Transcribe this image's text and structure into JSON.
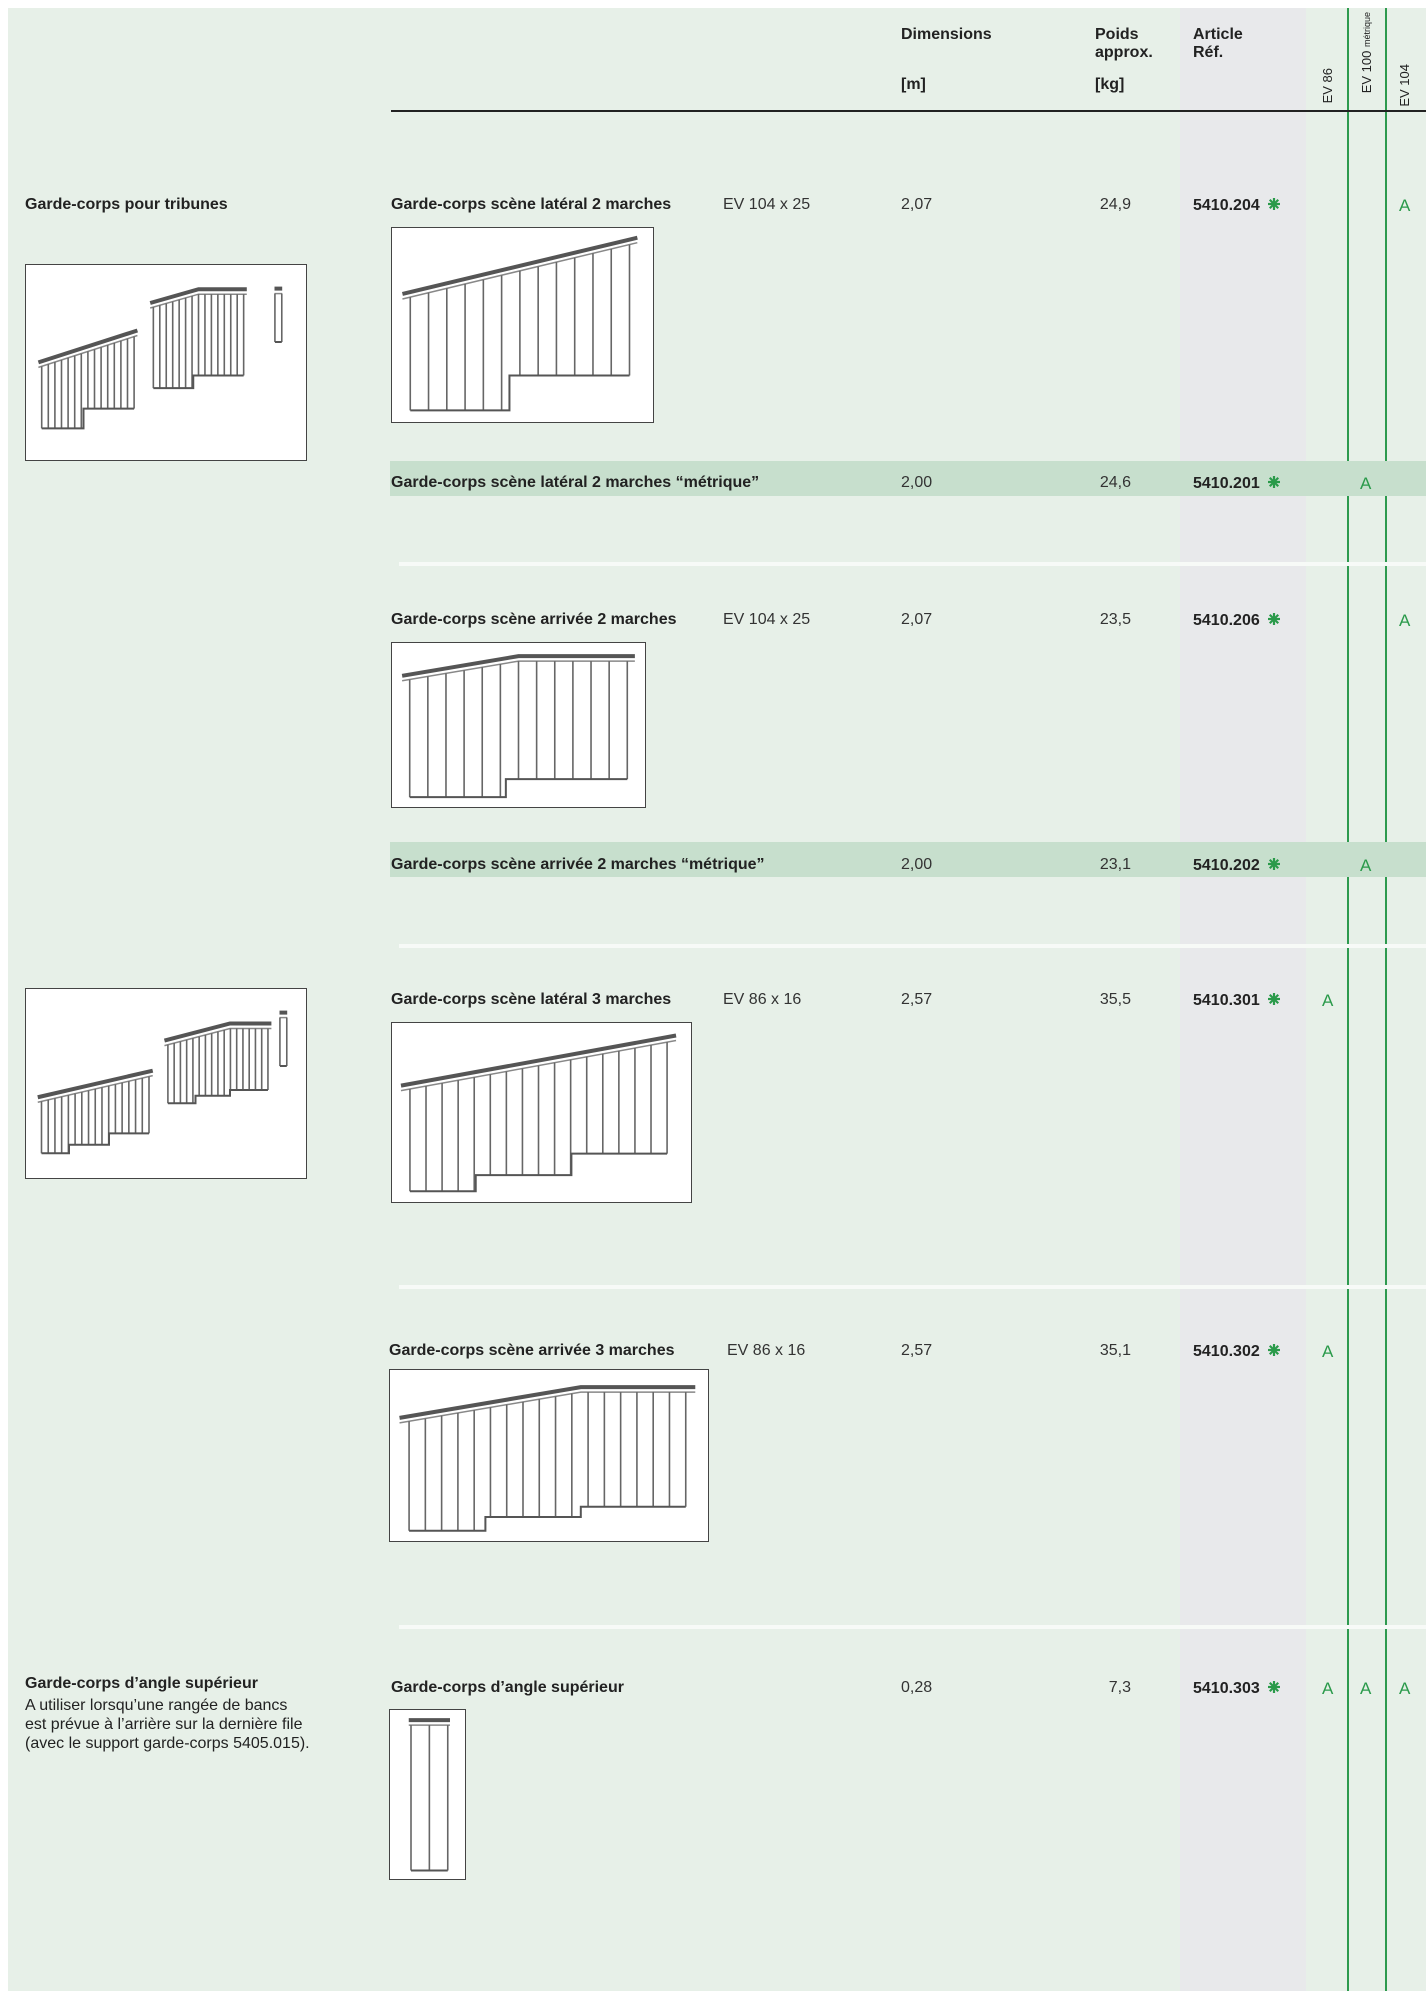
{
  "header": {
    "dimensions": "Dimensions",
    "dimensions_unit": "[m]",
    "weight": "Poids approx.",
    "weight_unit": "[kg]",
    "article": "Article Réf.",
    "ev86": "EV 86",
    "ev100": "EV 100",
    "ev100_note": "métrique",
    "ev104": "EV 104"
  },
  "groups": [
    {
      "title": "Garde-corps pour tribunes"
    },
    {
      "title": "Garde-corps d’angle supérieur",
      "description": [
        "A utiliser lorsqu’une rangée de bancs",
        "est prévue à l’arrière sur la dernière file",
        "(avec le support garde-corps 5405.015)."
      ]
    }
  ],
  "rows": [
    {
      "name": "Garde-corps scène latéral 2 marches",
      "spec": "EV 104 x 25",
      "dimension": "2,07",
      "weight": "24,9",
      "ref": "5410.204",
      "ev104": "A"
    },
    {
      "name": "Garde-corps scène latéral 2 marches “métrique”",
      "dimension": "2,00",
      "weight": "24,6",
      "ref": "5410.201",
      "ev100": "A"
    },
    {
      "name": "Garde-corps scène arrivée 2 marches",
      "spec": "EV 104 x 25",
      "dimension": "2,07",
      "weight": "23,5",
      "ref": "5410.206",
      "ev104": "A"
    },
    {
      "name": "Garde-corps scène arrivée 2 marches “métrique”",
      "dimension": "2,00",
      "weight": "23,1",
      "ref": "5410.202",
      "ev100": "A"
    },
    {
      "name": "Garde-corps scène latéral 3 marches",
      "spec": "EV 86 x 16",
      "dimension": "2,57",
      "weight": "35,5",
      "ref": "5410.301",
      "ev86": "A"
    },
    {
      "name": "Garde-corps scène arrivée 3 marches",
      "spec": "EV 86 x 16",
      "dimension": "2,57",
      "weight": "35,1",
      "ref": "5410.302",
      "ev86": "A"
    },
    {
      "name": "Garde-corps d’angle supérieur",
      "dimension": "0,28",
      "weight": "7,3",
      "ref": "5410.303",
      "ev86": "A",
      "ev100": "A",
      "ev104": "A"
    }
  ]
}
